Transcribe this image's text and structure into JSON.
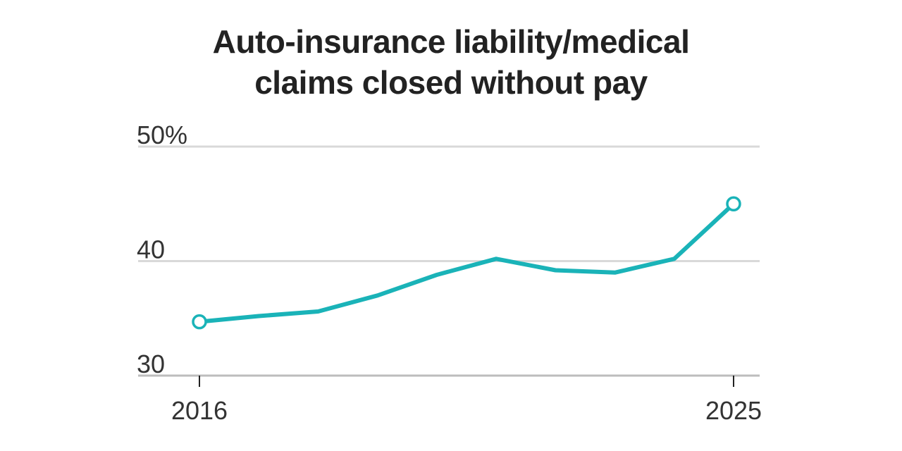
{
  "chart_data": {
    "type": "line",
    "title_lines": [
      "Auto-insurance liability/medical",
      "claims closed without pay"
    ],
    "xlabel": "",
    "ylabel": "",
    "x": [
      2016,
      2017,
      2018,
      2019,
      2020,
      2021,
      2022,
      2023,
      2024,
      2025
    ],
    "x_tick_labels": [
      {
        "value": 2016,
        "label": "2016"
      },
      {
        "value": 2025,
        "label": "2025"
      }
    ],
    "y_ticks": [
      {
        "value": 50,
        "label": "50%"
      },
      {
        "value": 40,
        "label": "40"
      },
      {
        "value": 30,
        "label": "30"
      }
    ],
    "ylim": [
      30,
      50
    ],
    "xlim": [
      2016,
      2025
    ],
    "grid": true,
    "series": [
      {
        "values": [
          34.7,
          35.2,
          35.6,
          37.0,
          38.8,
          40.2,
          39.2,
          39.0,
          40.2,
          45.0
        ],
        "markers_on": [
          2016,
          2025
        ]
      }
    ],
    "colors": {
      "line": "#1ab3b8",
      "grid": "#d9d9d9",
      "text": "#222222"
    }
  }
}
